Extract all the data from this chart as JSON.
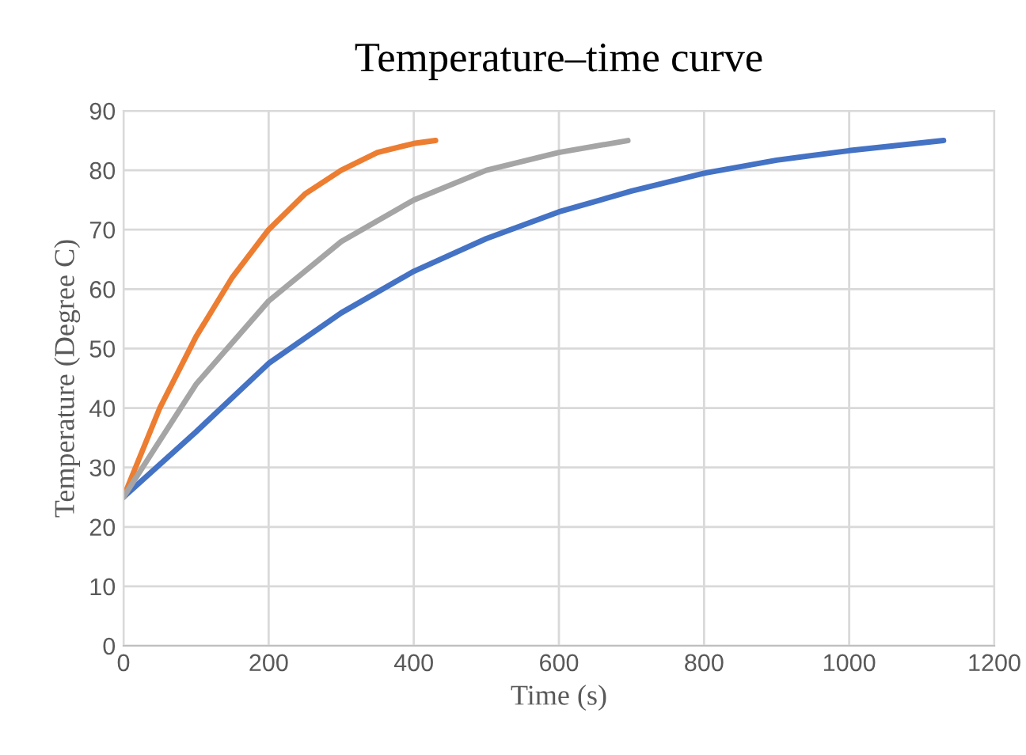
{
  "chart_data": {
    "type": "line",
    "title": "Temperature–time curve",
    "xlabel": "Time (s)",
    "ylabel": "Temperature (Degree C)",
    "xlim": [
      0,
      1200
    ],
    "xticks": [
      0,
      200,
      400,
      600,
      800,
      1000,
      1200
    ],
    "ylim": [
      0,
      90
    ],
    "yticks": [
      0,
      10,
      20,
      30,
      40,
      50,
      60,
      70,
      80,
      90
    ],
    "grid": true,
    "marker": "none",
    "line_style": "solid",
    "series": [
      {
        "color": "#4472c4",
        "x": [
          0,
          100,
          200,
          300,
          400,
          500,
          600,
          700,
          800,
          900,
          1000,
          1130
        ],
        "values": [
          25,
          36,
          47.5,
          56,
          63,
          68.5,
          73,
          76.5,
          79.5,
          81.7,
          83.3,
          85
        ]
      },
      {
        "color": "#ed7d31",
        "x": [
          0,
          50,
          100,
          150,
          200,
          250,
          300,
          350,
          400,
          430
        ],
        "values": [
          25,
          40,
          52,
          62,
          70,
          76,
          80,
          83,
          84.5,
          85
        ]
      },
      {
        "color": "#a5a5a5",
        "x": [
          0,
          100,
          200,
          300,
          400,
          500,
          600,
          695
        ],
        "values": [
          25,
          44,
          58,
          68,
          75,
          80,
          83,
          85
        ]
      }
    ]
  }
}
